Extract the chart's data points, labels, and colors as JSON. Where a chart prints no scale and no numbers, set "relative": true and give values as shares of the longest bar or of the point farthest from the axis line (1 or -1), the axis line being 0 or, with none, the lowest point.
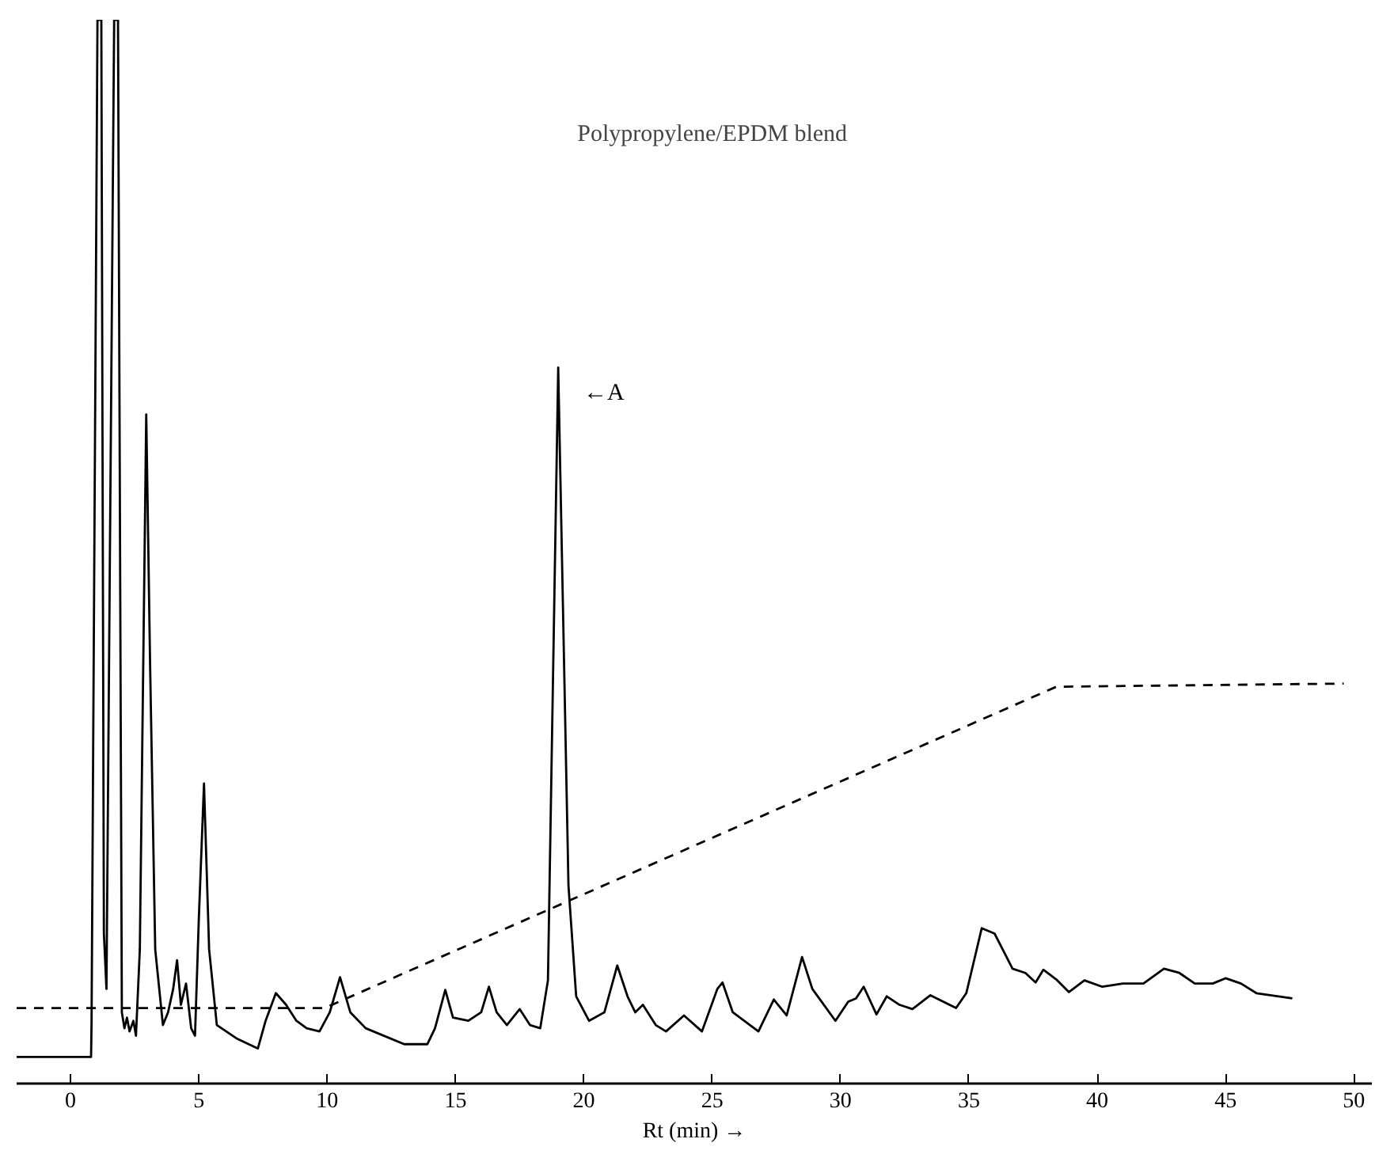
{
  "chart_data": {
    "type": "line",
    "relative": true,
    "title": "Polypropylene/EPDM blend",
    "xlabel": "Rt (min) →",
    "xlim": [
      -2.1,
      50.7
    ],
    "xticks": [
      0,
      5,
      10,
      15,
      20,
      25,
      30,
      35,
      40,
      45,
      50
    ],
    "grid": false,
    "marker": "none",
    "tick_labels": "x",
    "annotations": [
      "←A"
    ],
    "series": [
      {
        "color": "#000000",
        "line_style": "solid",
        "x": [
          -2.1,
          0.8,
          0.82,
          1.05,
          1.2,
          1.3,
          1.4,
          1.7,
          1.85,
          2.0,
          2.1,
          2.2,
          2.3,
          2.45,
          2.55,
          2.7,
          2.95,
          3.1,
          3.3,
          3.6,
          3.8,
          4.0,
          4.15,
          4.3,
          4.5,
          4.7,
          4.85,
          5.0,
          5.2,
          5.4,
          5.7,
          6.5,
          7.3,
          7.6,
          8.0,
          8.4,
          8.8,
          9.2,
          9.7,
          10.1,
          10.5,
          10.9,
          11.5,
          13.0,
          13.9,
          14.2,
          14.6,
          14.9,
          15.5,
          16.0,
          16.3,
          16.6,
          17.0,
          17.5,
          17.9,
          18.3,
          18.6,
          19.0,
          19.4,
          19.7,
          20.2,
          20.8,
          21.3,
          21.7,
          22.0,
          22.3,
          22.8,
          23.2,
          23.9,
          24.6,
          25.2,
          25.4,
          25.8,
          26.8,
          27.4,
          27.9,
          28.5,
          28.9,
          29.8,
          30.3,
          30.6,
          30.9,
          31.4,
          31.8,
          32.3,
          32.8,
          33.5,
          34.5,
          34.9,
          35.5,
          36.0,
          36.7,
          37.2,
          37.6,
          37.9,
          38.4,
          38.9,
          39.5,
          40.2,
          41.0,
          41.8,
          42.6,
          43.2,
          43.8,
          44.5,
          45.0,
          45.6,
          46.2,
          47.6
        ],
        "values": [
          0.025,
          0.025,
          0.059,
          1.0,
          1.0,
          0.141,
          0.089,
          1.0,
          1.0,
          0.067,
          0.052,
          0.062,
          0.049,
          0.059,
          0.045,
          0.126,
          0.629,
          0.394,
          0.126,
          0.055,
          0.067,
          0.089,
          0.116,
          0.074,
          0.094,
          0.052,
          0.045,
          0.156,
          0.282,
          0.126,
          0.055,
          0.042,
          0.033,
          0.059,
          0.085,
          0.074,
          0.059,
          0.052,
          0.049,
          0.067,
          0.1,
          0.067,
          0.052,
          0.037,
          0.037,
          0.052,
          0.088,
          0.062,
          0.059,
          0.067,
          0.091,
          0.067,
          0.055,
          0.07,
          0.055,
          0.052,
          0.097,
          0.673,
          0.186,
          0.082,
          0.059,
          0.067,
          0.111,
          0.082,
          0.067,
          0.074,
          0.055,
          0.049,
          0.064,
          0.049,
          0.089,
          0.095,
          0.067,
          0.049,
          0.079,
          0.064,
          0.119,
          0.089,
          0.059,
          0.077,
          0.08,
          0.091,
          0.065,
          0.082,
          0.074,
          0.07,
          0.083,
          0.071,
          0.085,
          0.146,
          0.141,
          0.108,
          0.104,
          0.095,
          0.107,
          0.098,
          0.086,
          0.097,
          0.091,
          0.094,
          0.094,
          0.108,
          0.104,
          0.094,
          0.094,
          0.099,
          0.094,
          0.085,
          0.08
        ]
      },
      {
        "color": "#000000",
        "line_style": "dashed",
        "x": [
          -2.1,
          9.9,
          38.4,
          49.6
        ],
        "values": [
          0.071,
          0.071,
          0.373,
          0.376
        ]
      }
    ]
  }
}
